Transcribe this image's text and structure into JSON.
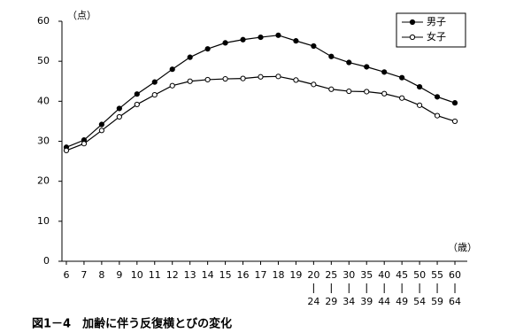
{
  "chart_data": {
    "type": "line",
    "caption": "図1－4　加齢に伴う反復横とびの変化",
    "y_label": "（点）",
    "x_label": "（歳）",
    "categories": [
      "6",
      "7",
      "8",
      "9",
      "10",
      "11",
      "12",
      "13",
      "14",
      "15",
      "16",
      "17",
      "18",
      "19",
      "20",
      "25",
      "30",
      "35",
      "40",
      "45",
      "50",
      "55",
      "60"
    ],
    "categories_end": [
      null,
      null,
      null,
      null,
      null,
      null,
      null,
      null,
      null,
      null,
      null,
      null,
      null,
      null,
      "24",
      "29",
      "34",
      "39",
      "44",
      "49",
      "54",
      "59",
      "64"
    ],
    "series": [
      {
        "name": "男子",
        "color": "#000000",
        "marker": "filled",
        "values": [
          28.5,
          30.3,
          34.2,
          38.2,
          41.8,
          44.8,
          48.0,
          51.0,
          53.1,
          54.6,
          55.4,
          56.0,
          56.5,
          55.1,
          53.8,
          51.2,
          49.7,
          48.6,
          47.3,
          45.9,
          43.6,
          41.1,
          39.6
        ]
      },
      {
        "name": "女子",
        "color": "#000000",
        "marker": "open",
        "values": [
          27.7,
          29.4,
          32.7,
          36.1,
          39.2,
          41.6,
          43.9,
          45.0,
          45.4,
          45.6,
          45.7,
          46.1,
          46.2,
          45.3,
          44.2,
          43.0,
          42.5,
          42.4,
          41.9,
          40.8,
          39.0,
          36.4,
          35.0
        ]
      }
    ],
    "ylim": [
      0,
      60
    ],
    "yticks": [
      0,
      10,
      20,
      30,
      40,
      50,
      60
    ],
    "legend": "upper right"
  }
}
